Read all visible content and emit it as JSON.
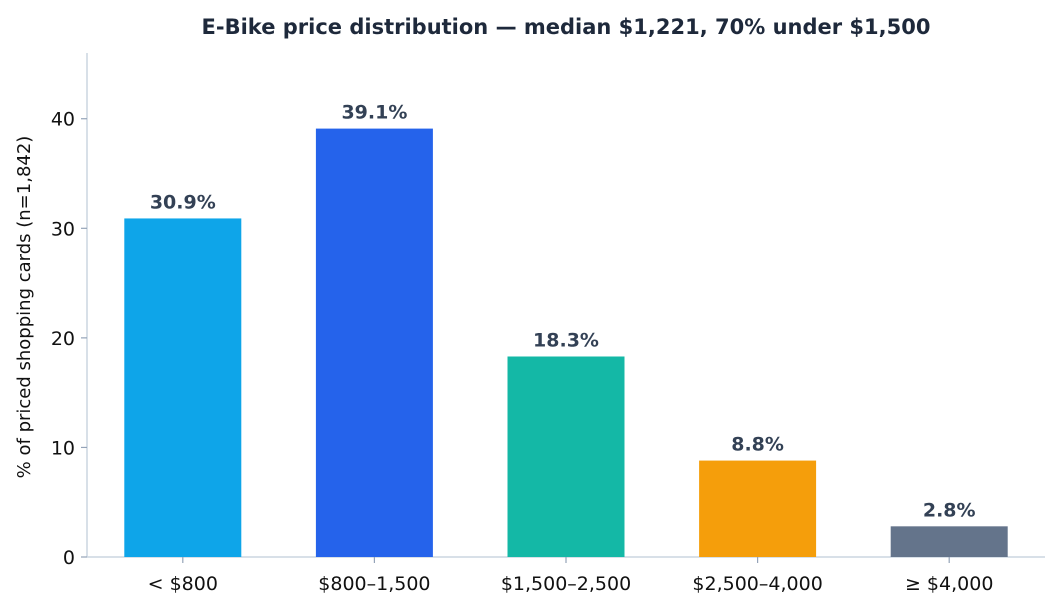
{
  "chart_data": {
    "type": "bar",
    "title": "E-Bike price distribution — median $1,221, 70% under $1,500",
    "xlabel": "",
    "ylabel": "% of priced shopping cards (n=1,842)",
    "categories": [
      "< $800",
      "$800–1,500",
      "$1,500–2,500",
      "$2,500–4,000",
      "≥ $4,000"
    ],
    "values": [
      30.9,
      39.1,
      18.3,
      8.8,
      2.8
    ],
    "data_labels": [
      "30.9%",
      "39.1%",
      "18.3%",
      "8.8%",
      "2.8%"
    ],
    "colors": [
      "#0ea5e9",
      "#2563eb",
      "#14b8a6",
      "#f59e0b",
      "#64748b"
    ],
    "ylim": [
      0,
      46
    ],
    "yticks": [
      0,
      10,
      20,
      30,
      40
    ],
    "grid": false,
    "legend": "none"
  }
}
